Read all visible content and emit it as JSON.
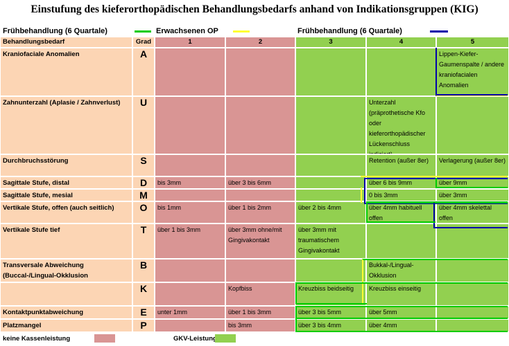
{
  "title": "Einstufung des kieferorthopädischen Behandlungsbedarfs anhand von Indikationsgruppen (KIG)",
  "legend": [
    {
      "label": "Frühbehandlung (6 Quartale)",
      "color": "#00cc00"
    },
    {
      "label": "Erwachsenen OP",
      "color": "#ffff33"
    },
    {
      "label": "Frühbehandlung (6 Quartale)",
      "color": "#0000aa"
    }
  ],
  "header": {
    "behandlungsbedarf": "Behandlungsbedarf",
    "grad": "Grad",
    "grades": [
      "1",
      "2",
      "3",
      "4",
      "5"
    ]
  },
  "rows": [
    {
      "label": "Kraniofaciale Anomalien",
      "grade": "A",
      "cells": [
        "",
        "",
        "",
        "",
        "Lippen-Kiefer-Gaumenspalte / andere kraniofacialen Anomalien"
      ]
    },
    {
      "label": "Zahnunterzahl (Aplasie / Zahnverlust)",
      "grade": "U",
      "cells": [
        "",
        "",
        "",
        "Unterzahl (präprothetische Kfo oder kieferorthopädischer Lückenschluss indiziert)",
        ""
      ]
    },
    {
      "label": "Durchbruchsstörung",
      "grade": "S",
      "cells": [
        "",
        "",
        "",
        "Retention (außer 8er)",
        "Verlagerung (außer 8er)"
      ]
    },
    {
      "label": "Sagittale Stufe, distal",
      "grade": "D",
      "cells": [
        "bis 3mm",
        "über 3 bis 6mm",
        "",
        "über 6 bis 9mm",
        "über 9mm"
      ]
    },
    {
      "label": "Sagittale Stufe, mesial",
      "grade": "M",
      "cells": [
        "",
        "",
        "",
        "0 bis 3mm",
        "über 3mm"
      ]
    },
    {
      "label": "Vertikale Stufe, offen (auch seitlich)",
      "grade": "O",
      "cells": [
        "bis 1mm",
        "über 1 bis 2mm",
        "über 2 bis 4mm",
        "über 4mm habituell offen",
        "über 4mm skelettal offen"
      ]
    },
    {
      "label": "Vertikale Stufe tief",
      "grade": "T",
      "cells": [
        "über 1 bis 3mm",
        "über 3mm ohne/mit Gingivakontakt",
        "über 3mm mit traumatischem Gingivakontakt",
        "",
        ""
      ]
    },
    {
      "label": "Transversale Abweichung (Buccal-/Lingual-Okklusion",
      "grade": "B",
      "cells": [
        "",
        "",
        "",
        "Bukkal-/Lingual-Okklusion",
        ""
      ]
    },
    {
      "label": "",
      "grade": "K",
      "cells": [
        "",
        "Kopfbiss",
        "Kreuzbiss beidseitig",
        "Kreuzbiss einseitig",
        ""
      ]
    },
    {
      "label": "Kontaktpunktabweichung",
      "grade": "E",
      "cells": [
        "unter 1mm",
        "über 1 bis 3mm",
        "über 3 bis 5mm",
        "über 5mm",
        ""
      ]
    },
    {
      "label": "Platzmangel",
      "grade": "P",
      "cells": [
        "",
        "bis 3mm",
        "über 3 bis 4mm",
        "über 4mm",
        ""
      ]
    }
  ],
  "footer": {
    "keine": "keine Kassenleistung",
    "gkv": "GKV-Leistung",
    "keine_color": "#d99594",
    "gkv_color": "#92d050"
  }
}
